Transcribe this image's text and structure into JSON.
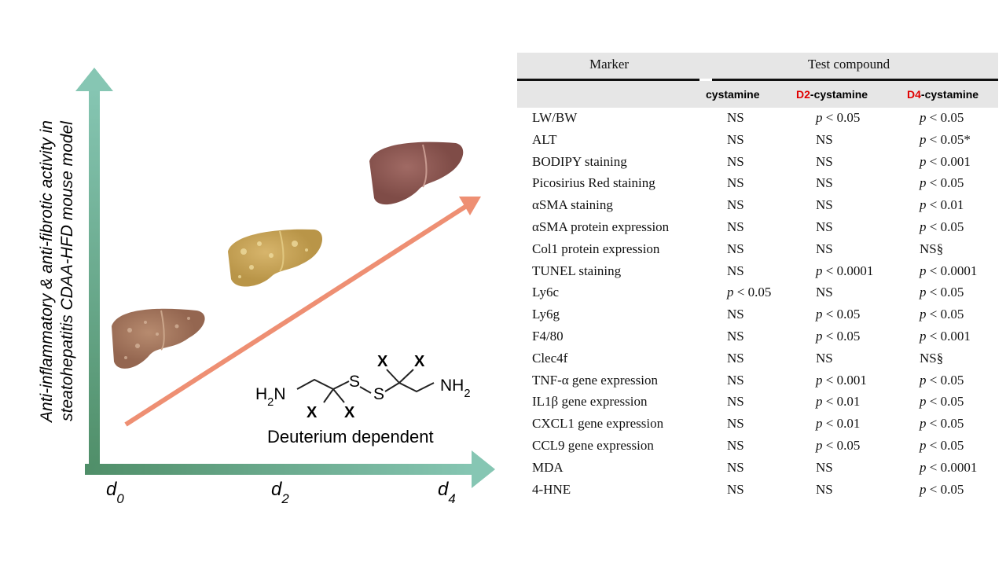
{
  "diagram": {
    "y_axis_label": [
      "Anti-inflammatory & anti-fibrotic activity in",
      "steatohepatitis CDAA-HFD mouse model"
    ],
    "x_axis_labels": [
      "d0",
      "d2",
      "d4"
    ],
    "structure": {
      "left_amine": "H2N",
      "right_amine": "NH2",
      "sulfur_left": "S",
      "sulfur_right": "S",
      "x_labels": [
        "X",
        "X",
        "X",
        "X"
      ],
      "caption": "Deuterium dependent"
    }
  },
  "table": {
    "header": [
      "Marker",
      "Test compound"
    ],
    "columns": [
      "cystamine",
      "D2-cystamine",
      "D4-cystamine"
    ],
    "rows": [
      [
        "LW/BW",
        "NS",
        "p < 0.05",
        "p < 0.05"
      ],
      [
        "ALT",
        "NS",
        "NS",
        "p < 0.05*"
      ],
      [
        "BODIPY staining",
        "NS",
        "NS",
        "p < 0.001"
      ],
      [
        "Picosirius Red staining",
        "NS",
        "NS",
        "p < 0.05"
      ],
      [
        "αSMA staining",
        "NS",
        "NS",
        "p < 0.01"
      ],
      [
        "αSMA protein expression",
        "NS",
        "NS",
        "p < 0.05"
      ],
      [
        "Col1 protein expression",
        "NS",
        "NS",
        "NS§"
      ],
      [
        "TUNEL staining",
        "NS",
        "p < 0.0001",
        "p < 0.0001"
      ],
      [
        "Ly6c",
        "p < 0.05",
        "NS",
        "p < 0.05"
      ],
      [
        "Ly6g",
        "NS",
        "p < 0.05",
        "p < 0.05"
      ],
      [
        "F4/80",
        "NS",
        "p < 0.05",
        "p < 0.001"
      ],
      [
        "Clec4f",
        "NS",
        "NS",
        "NS§"
      ],
      [
        "TNF-α gene expression",
        "NS",
        "p < 0.001",
        "p < 0.05"
      ],
      [
        "IL1β gene expression",
        "NS",
        "p < 0.01",
        "p < 0.05"
      ],
      [
        "CXCL1 gene expression",
        "NS",
        "p < 0.01",
        "p < 0.05"
      ],
      [
        "CCL9 gene expression",
        "NS",
        "p < 0.05",
        "p < 0.05"
      ],
      [
        "MDA",
        "NS",
        "NS",
        "p < 0.0001"
      ],
      [
        "4-HNE",
        "NS",
        "NS",
        "p < 0.05"
      ]
    ]
  }
}
